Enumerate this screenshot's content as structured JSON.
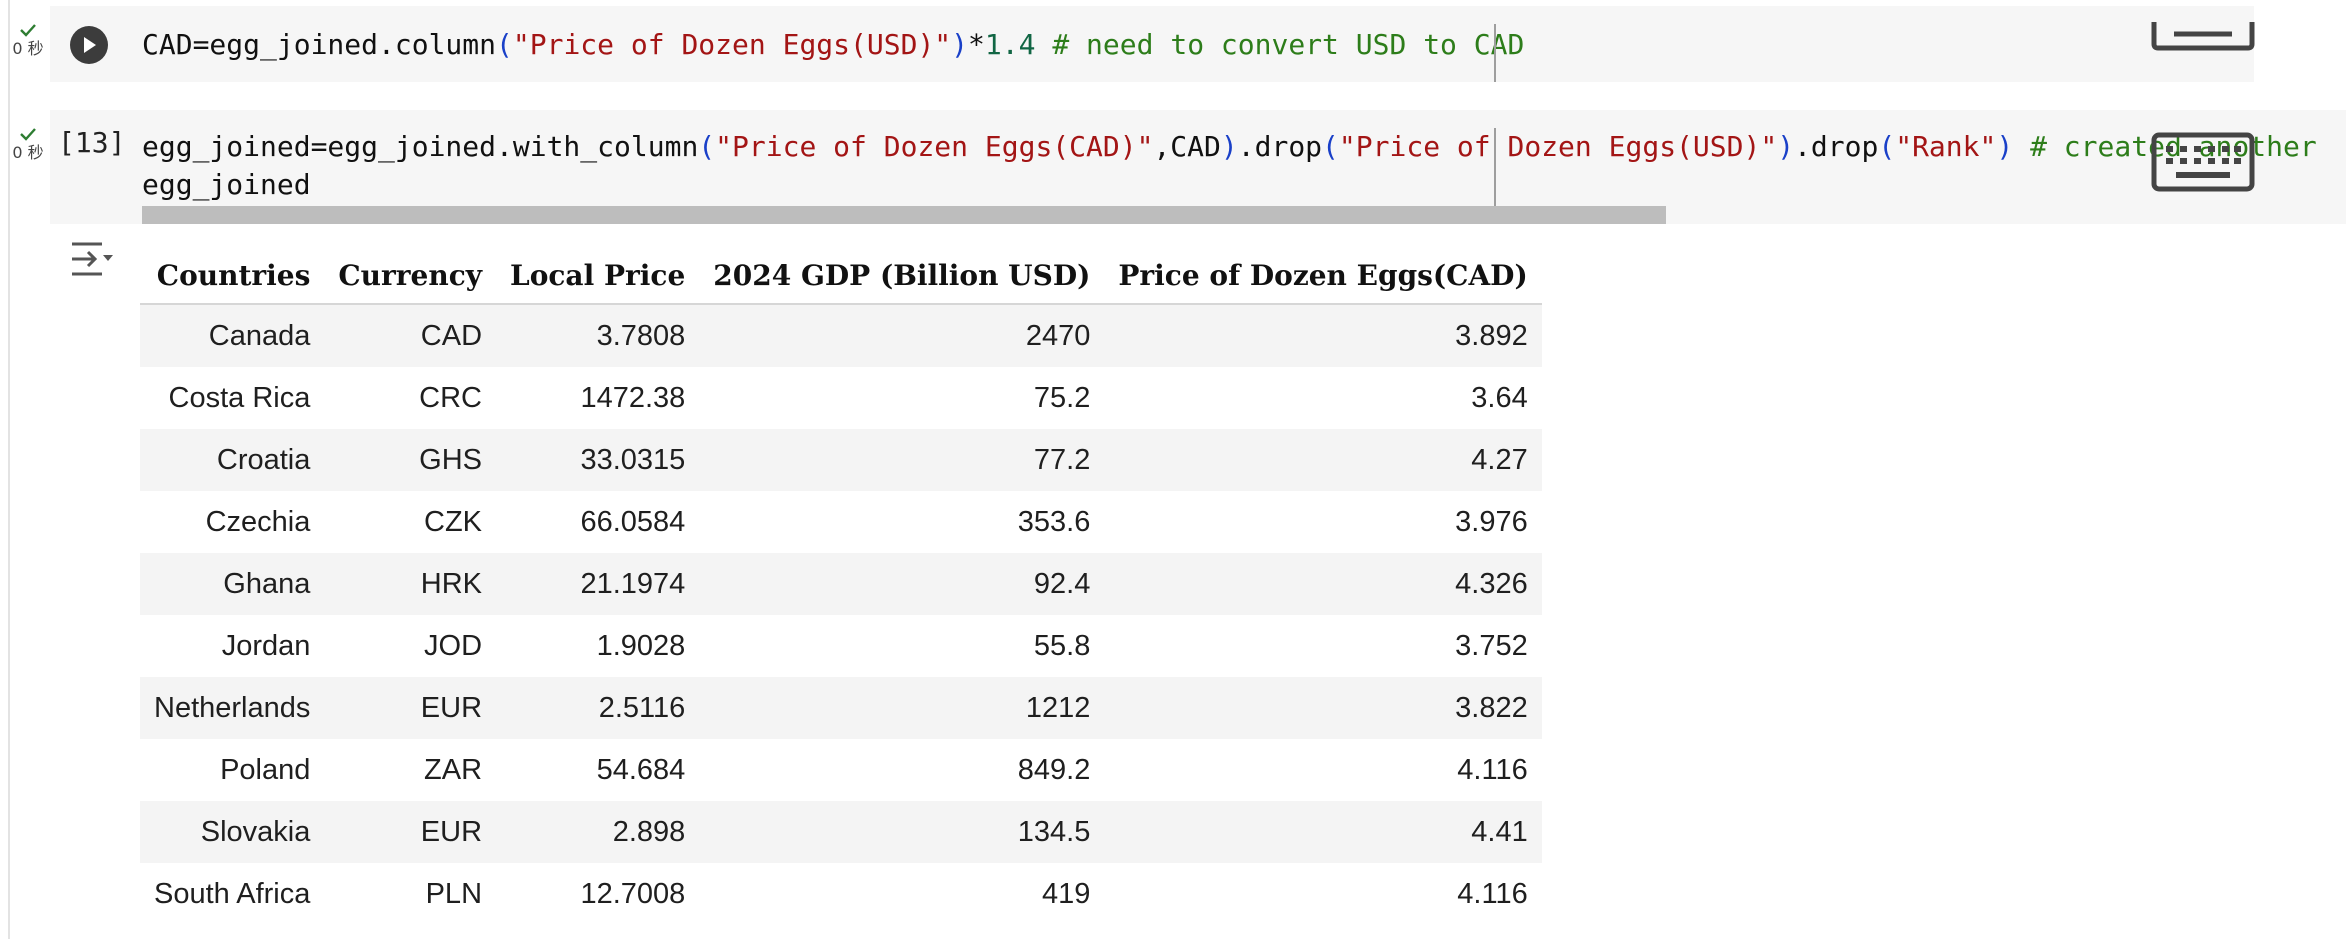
{
  "cells": [
    {
      "status": "0 秒",
      "code": [
        [
          {
            "t": "CAD=egg_joined.column",
            "c": ""
          },
          {
            "t": "(",
            "c": "paren"
          },
          {
            "t": "\"Price of Dozen Eggs(USD)\"",
            "c": "str"
          },
          {
            "t": ")",
            "c": "paren"
          },
          {
            "t": "*",
            "c": ""
          },
          {
            "t": "1.4",
            "c": "num"
          },
          {
            "t": " ",
            "c": ""
          },
          {
            "t": "# need to convert USD to CAD",
            "c": "comment"
          }
        ]
      ]
    },
    {
      "status": "0 秒",
      "exec_count": "[13]",
      "code": [
        [
          {
            "t": "egg_joined=egg_joined.with_column",
            "c": ""
          },
          {
            "t": "(",
            "c": "paren"
          },
          {
            "t": "\"Price of Dozen Eggs(CAD)\"",
            "c": "str"
          },
          {
            "t": ",CAD",
            "c": ""
          },
          {
            "t": ")",
            "c": "paren"
          },
          {
            "t": ".drop",
            "c": ""
          },
          {
            "t": "(",
            "c": "paren"
          },
          {
            "t": "\"Price of Dozen Eggs(USD)\"",
            "c": "str"
          },
          {
            "t": ")",
            "c": "paren"
          },
          {
            "t": ".drop",
            "c": ""
          },
          {
            "t": "(",
            "c": "paren"
          },
          {
            "t": "\"Rank\"",
            "c": "str"
          },
          {
            "t": ")",
            "c": "paren"
          },
          {
            "t": " ",
            "c": ""
          },
          {
            "t": "# created another",
            "c": "comment"
          }
        ],
        [
          {
            "t": "egg_joined",
            "c": ""
          }
        ]
      ]
    }
  ],
  "table": {
    "columns": [
      "Countries",
      "Currency",
      "Local Price",
      "2024 GDP (Billion USD)",
      "Price of Dozen Eggs(CAD)"
    ],
    "rows": [
      [
        "Canada",
        "CAD",
        "3.7808",
        "2470",
        "3.892"
      ],
      [
        "Costa Rica",
        "CRC",
        "1472.38",
        "75.2",
        "3.64"
      ],
      [
        "Croatia",
        "GHS",
        "33.0315",
        "77.2",
        "4.27"
      ],
      [
        "Czechia",
        "CZK",
        "66.0584",
        "353.6",
        "3.976"
      ],
      [
        "Ghana",
        "HRK",
        "21.1974",
        "92.4",
        "4.326"
      ],
      [
        "Jordan",
        "JOD",
        "1.9028",
        "55.8",
        "3.752"
      ],
      [
        "Netherlands",
        "EUR",
        "2.5116",
        "1212",
        "3.822"
      ],
      [
        "Poland",
        "ZAR",
        "54.684",
        "849.2",
        "4.116"
      ],
      [
        "Slovakia",
        "EUR",
        "2.898",
        "134.5",
        "4.41"
      ],
      [
        "South Africa",
        "PLN",
        "12.7008",
        "419",
        "4.116"
      ]
    ]
  },
  "icons": {
    "run": "play-icon",
    "check": "check-icon",
    "keyboard": "keyboard-icon",
    "output_toggle": "output-actions-icon"
  },
  "colors": {
    "string": "#a31515",
    "paren": "#1a40c8",
    "number": "#116644",
    "comment": "#2d7d1a",
    "check": "#2e7d32"
  }
}
